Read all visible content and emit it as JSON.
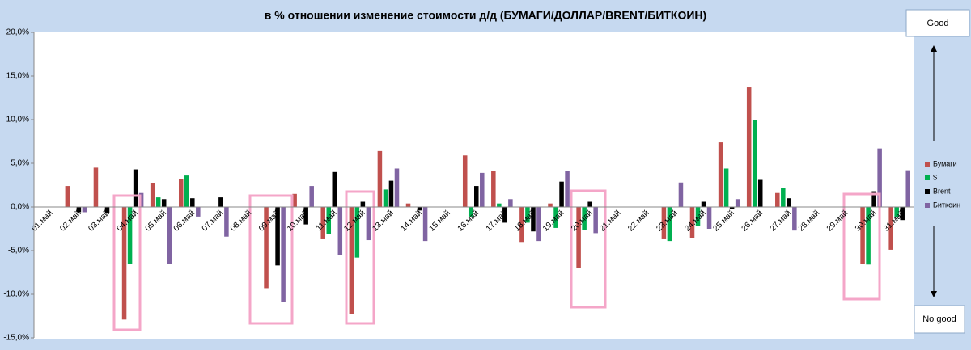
{
  "chart_data": {
    "type": "bar",
    "title": "в % отношении изменение стоимости д/д (БУМАГИ/ДОЛЛАР/BRENT/БИТКОИН)",
    "categories": [
      "01.май",
      "02.май",
      "03.май",
      "04.май",
      "05.май",
      "06.май",
      "07.май",
      "08.май",
      "09.май",
      "10.май",
      "11.май",
      "12.май",
      "13.май",
      "14.май",
      "15.май",
      "16.май",
      "17.май",
      "18.май",
      "19.май",
      "20.май",
      "21.май",
      "22.май",
      "23.май",
      "24.май",
      "25.май",
      "26.май",
      "27.май",
      "28.май",
      "29.май",
      "30.май",
      "31.май"
    ],
    "series": [
      {
        "name": "Бумаги",
        "color": "#c0504d",
        "values": [
          null,
          2.4,
          4.5,
          -12.9,
          2.7,
          3.2,
          null,
          null,
          -9.3,
          1.5,
          -3.7,
          -12.3,
          6.4,
          0.4,
          null,
          5.9,
          4.1,
          -4.1,
          0.4,
          -7.0,
          null,
          null,
          -3.7,
          -3.6,
          7.4,
          13.7,
          1.6,
          null,
          null,
          -6.5,
          -4.9
        ]
      },
      {
        "name": "$",
        "color": "#00b050",
        "values": [
          null,
          null,
          null,
          -6.5,
          1.1,
          3.6,
          null,
          null,
          null,
          null,
          -3.1,
          -5.8,
          2.0,
          null,
          null,
          -1.1,
          0.4,
          -1.8,
          -2.4,
          -2.6,
          null,
          null,
          -3.9,
          -2.2,
          4.4,
          10.0,
          2.2,
          null,
          null,
          -6.6,
          -1.2
        ]
      },
      {
        "name": "Brent",
        "color": "#000000",
        "values": [
          null,
          -0.6,
          -0.7,
          4.3,
          0.9,
          1.0,
          1.1,
          null,
          -6.7,
          -2.0,
          4.0,
          0.6,
          3.0,
          -0.4,
          null,
          2.4,
          -1.8,
          -2.8,
          2.9,
          0.6,
          null,
          null,
          null,
          0.6,
          -0.2,
          3.1,
          1.0,
          null,
          null,
          1.8,
          -1.5
        ]
      },
      {
        "name": "Биткоин",
        "color": "#8064a2",
        "values": [
          null,
          -0.6,
          null,
          1.6,
          -6.5,
          -1.1,
          -3.4,
          null,
          -10.9,
          2.4,
          -5.5,
          -3.8,
          4.4,
          -3.9,
          null,
          3.9,
          0.9,
          -3.9,
          4.1,
          -3.0,
          null,
          null,
          2.8,
          -2.5,
          0.9,
          null,
          -2.7,
          null,
          null,
          6.7,
          4.2
        ]
      }
    ],
    "ylim": [
      -15,
      20
    ],
    "yticks": [
      {
        "value": -15,
        "label": "-15,0%"
      },
      {
        "value": -10,
        "label": "-10,0%"
      },
      {
        "value": -5,
        "label": "-5,0%"
      },
      {
        "value": 0,
        "label": "0,0%"
      },
      {
        "value": 5,
        "label": "5,0%"
      },
      {
        "value": 10,
        "label": "10,0%"
      },
      {
        "value": 15,
        "label": "15,0%"
      },
      {
        "value": 20,
        "label": "20,0%"
      }
    ],
    "annotations": [
      "Good",
      "No good"
    ]
  }
}
